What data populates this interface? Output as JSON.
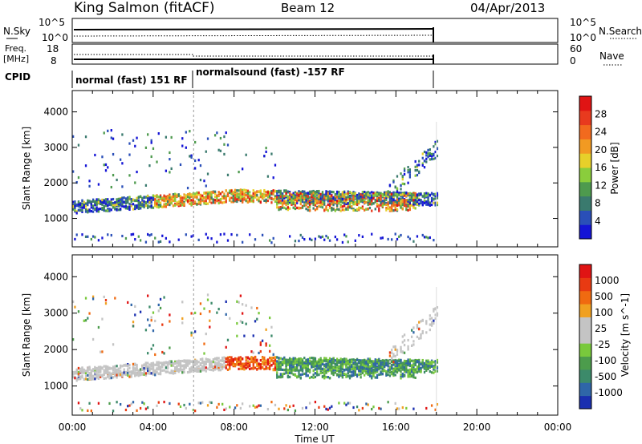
{
  "header": {
    "station": "King Salmon (fitACF)",
    "beam": "Beam 12",
    "date": "04/Apr/2013"
  },
  "strips": {
    "nsky_label": "N.Sky",
    "nsearch_label": "N.Search",
    "noise_ticks": [
      "10^5",
      "10^0"
    ],
    "noise_right_ticks": [
      "10^5",
      "10^0"
    ],
    "freq_label": "Freq.",
    "freq_unit": "[MHz]",
    "freq_ticks": [
      "18",
      "8"
    ],
    "nave_label": "Nave",
    "nave_ticks": [
      "60",
      "0"
    ],
    "cpid_label": "CPID",
    "cpid_segments": [
      "normal (fast) 151 RF",
      "normalsound (fast) -157 RF"
    ]
  },
  "chart_data": [
    {
      "type": "heatmap",
      "title": "",
      "xlabel": "Time UT",
      "ylabel": "Slant Range [km]",
      "x_ticks": [
        "00:00",
        "04:00",
        "08:00",
        "12:00",
        "16:00",
        "20:00",
        "00:00"
      ],
      "y_ticks": [
        1000,
        2000,
        3000,
        4000
      ],
      "ylim": [
        200,
        4600
      ],
      "colorbar_label": "Power [dB]",
      "colorbar_ticks": [
        4,
        8,
        12,
        16,
        20,
        24,
        28
      ],
      "colorbar_colors": [
        "#1414d6",
        "#2a4fb8",
        "#3a7a6e",
        "#4e9a4e",
        "#8acd3c",
        "#e7d02a",
        "#f29a22",
        "#f26a1e",
        "#e83a1e",
        "#e01414"
      ],
      "data_extent_hours": [
        0,
        18
      ],
      "mode_change_hour": 6
    },
    {
      "type": "heatmap",
      "title": "",
      "xlabel": "Time UT",
      "ylabel": "Slant Range [km]",
      "x_ticks": [
        "00:00",
        "04:00",
        "08:00",
        "12:00",
        "16:00",
        "20:00",
        "00:00"
      ],
      "y_ticks": [
        1000,
        2000,
        3000,
        4000
      ],
      "ylim": [
        200,
        4600
      ],
      "colorbar_label": "Velocity [m s^-1]",
      "colorbar_ticks": [
        "1000",
        "500",
        "100",
        "25",
        "-25",
        "-100",
        "-500",
        "-1000"
      ],
      "colorbar_colors": [
        "#1a2fb0",
        "#2f66a8",
        "#3c8a6a",
        "#4c9c4c",
        "#79c93c",
        "#c4c4c4",
        "#c4c4c4",
        "#f0a020",
        "#f06a10",
        "#e83a12",
        "#e01414"
      ],
      "data_extent_hours": [
        0,
        18
      ],
      "mode_change_hour": 6
    }
  ]
}
